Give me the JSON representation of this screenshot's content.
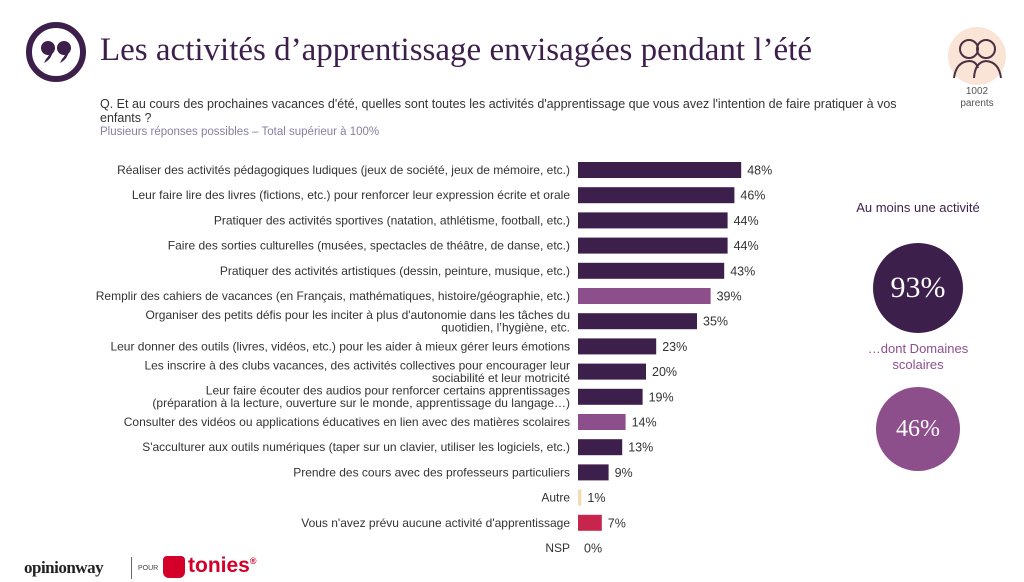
{
  "header": {
    "title": "Les activités d’apprentissage envisagées pendant l’été",
    "question": "Q. Et au cours des prochaines vacances d'été, quelles sont toutes les activités d'apprentissage que vous avez l'intention de faire pratiquer à vos enfants ?",
    "note": "Plusieurs réponses possibles – Total supérieur à 100%",
    "icon": "quote-icon"
  },
  "sample": {
    "n": "1002",
    "label": "parents",
    "icon": "parents-icon"
  },
  "kpis": [
    {
      "label": "Au moins une activité",
      "value": "93%",
      "color": "#3d1f4b"
    },
    {
      "label": "…dont Domaines scolaires",
      "value": "46%",
      "color": "#8d4e8c"
    }
  ],
  "chart_data": {
    "type": "bar",
    "orientation": "horizontal",
    "categories": [
      [
        "Réaliser des activités pédagogiques ludiques (jeux de société, jeux de mémoire, etc.)"
      ],
      [
        "Leur faire lire des livres (fictions, etc.) pour renforcer leur expression écrite et orale"
      ],
      [
        "Pratiquer des activités sportives (natation, athlétisme, football, etc.)"
      ],
      [
        "Faire des sorties culturelles (musées, spectacles de théâtre, de danse, etc.)"
      ],
      [
        "Pratiquer des activités artistiques (dessin, peinture, musique, etc.)"
      ],
      [
        "Remplir des cahiers de vacances (en Français, mathématiques, histoire/géographie, etc.)"
      ],
      [
        "Organiser des petits défis pour les inciter à plus d'autonomie dans les tâches du",
        "quotidien, l’hygiène, etc."
      ],
      [
        "Leur donner des outils (livres, vidéos, etc.) pour les aider à mieux gérer leurs émotions"
      ],
      [
        "Les inscrire à des clubs vacances, des activités collectives pour encourager leur",
        "sociabilité et leur motricité"
      ],
      [
        "Leur faire écouter des audios pour renforcer certains apprentissages",
        "(préparation à la lecture, ouverture sur le monde, apprentissage du langage…)"
      ],
      [
        "Consulter des vidéos ou applications éducatives en lien avec des matières scolaires"
      ],
      [
        "S'acculturer aux outils numériques (taper sur un clavier, utiliser les logiciels, etc.)"
      ],
      [
        "Prendre des cours avec des professeurs particuliers"
      ],
      [
        "Autre"
      ],
      [
        "Vous n'avez prévu aucune activité d'apprentissage"
      ],
      [
        "NSP"
      ]
    ],
    "values": [
      48,
      46,
      44,
      44,
      43,
      39,
      35,
      23,
      20,
      19,
      14,
      13,
      9,
      1,
      7,
      0
    ],
    "value_labels": [
      "48%",
      "46%",
      "44%",
      "44%",
      "43%",
      "39%",
      "35%",
      "23%",
      "20%",
      "19%",
      "14%",
      "13%",
      "9%",
      "1%",
      "7%",
      "0%"
    ],
    "colors": [
      "#3d1f4b",
      "#3d1f4b",
      "#3d1f4b",
      "#3d1f4b",
      "#3d1f4b",
      "#8d4e8c",
      "#3d1f4b",
      "#3d1f4b",
      "#3d1f4b",
      "#3d1f4b",
      "#8d4e8c",
      "#3d1f4b",
      "#3d1f4b",
      "#f3dcb3",
      "#c8254d",
      "#cccccc"
    ],
    "xlim": [
      0,
      100
    ],
    "grid": false,
    "legend": "none"
  },
  "footer": {
    "brand": "opinionway",
    "pour": "POUR",
    "partner": "tonies",
    "partner_mark": "®"
  }
}
